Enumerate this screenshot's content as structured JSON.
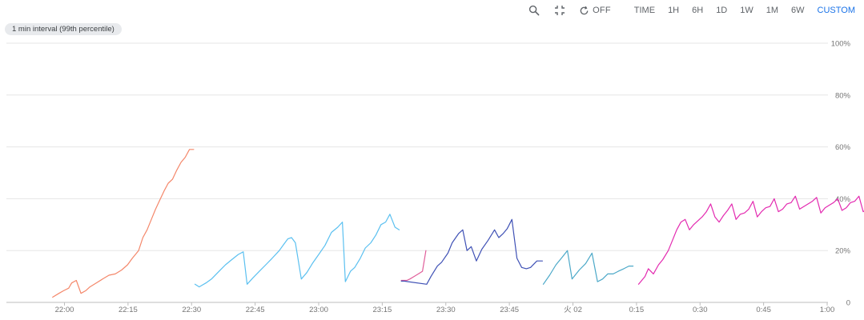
{
  "toolbar": {
    "zoom_icon": "search-icon",
    "collapse_icon": "collapse-icon",
    "refresh_icon": "refresh-icon",
    "refresh_label": "OFF",
    "ranges": [
      {
        "label": "TIME",
        "active": false
      },
      {
        "label": "1H",
        "active": false
      },
      {
        "label": "6H",
        "active": false
      },
      {
        "label": "1D",
        "active": false
      },
      {
        "label": "1W",
        "active": false
      },
      {
        "label": "1M",
        "active": false
      },
      {
        "label": "6W",
        "active": false
      },
      {
        "label": "CUSTOM",
        "active": true
      }
    ]
  },
  "interval_label": "1 min interval (99th percentile)",
  "chart_data": {
    "type": "line",
    "title": "",
    "xlabel": "",
    "ylabel": "",
    "x_range_minutes_after_2200": [
      -10.5,
      180
    ],
    "ylim": [
      0,
      100
    ],
    "grid": true,
    "y_axis_side": "right",
    "y_ticks": [
      {
        "value": 100,
        "label": "100%"
      },
      {
        "value": 80,
        "label": "80%"
      },
      {
        "value": 60,
        "label": "60%"
      },
      {
        "value": 40,
        "label": "40%"
      },
      {
        "value": 20,
        "label": "20%"
      },
      {
        "value": 0,
        "label": "0"
      }
    ],
    "x_ticks": [
      {
        "value": 0,
        "label": "22:00"
      },
      {
        "value": 15,
        "label": "22:15"
      },
      {
        "value": 30,
        "label": "22:30"
      },
      {
        "value": 45,
        "label": "22:45"
      },
      {
        "value": 60,
        "label": "23:00"
      },
      {
        "value": 75,
        "label": "23:15"
      },
      {
        "value": 90,
        "label": "23:30"
      },
      {
        "value": 105,
        "label": "23:45"
      },
      {
        "value": 120,
        "label": "火 02"
      },
      {
        "value": 135,
        "label": "0:15"
      },
      {
        "value": 150,
        "label": "0:30"
      },
      {
        "value": 165,
        "label": "0:45"
      },
      {
        "value": 180,
        "label": "1:00"
      }
    ],
    "series": [
      {
        "color": "#f4876a",
        "points": [
          [
            -2.8,
            2
          ],
          [
            -1.3,
            3.5
          ],
          [
            -0.2,
            4.5
          ],
          [
            1,
            5.5
          ],
          [
            1.7,
            7.5
          ],
          [
            2.8,
            8.5
          ],
          [
            3.9,
            3.5
          ],
          [
            5,
            4.5
          ],
          [
            6,
            6
          ],
          [
            7.5,
            7.5
          ],
          [
            9,
            9
          ],
          [
            10.5,
            10.5
          ],
          [
            12,
            11
          ],
          [
            13.5,
            12.5
          ],
          [
            14.9,
            14.5
          ],
          [
            16,
            17
          ],
          [
            17.5,
            20
          ],
          [
            18.5,
            25
          ],
          [
            19.5,
            28
          ],
          [
            20.5,
            32
          ],
          [
            21.5,
            36
          ],
          [
            22.5,
            39.5
          ],
          [
            23.5,
            43
          ],
          [
            24.5,
            46
          ],
          [
            25.5,
            47.5
          ],
          [
            26.5,
            51
          ],
          [
            27.5,
            54
          ],
          [
            28.5,
            56
          ],
          [
            29.5,
            59
          ],
          [
            30.5,
            59
          ]
        ]
      },
      {
        "color": "#5bc0f0",
        "points": [
          [
            30.8,
            7
          ],
          [
            31.8,
            6
          ],
          [
            33.4,
            7.5
          ],
          [
            34.7,
            9
          ],
          [
            36.5,
            12
          ],
          [
            38,
            14.5
          ],
          [
            39.5,
            16.5
          ],
          [
            41,
            18.5
          ],
          [
            42.2,
            19.5
          ],
          [
            43.1,
            7
          ],
          [
            44.5,
            9.5
          ],
          [
            46,
            12
          ],
          [
            47.5,
            14.5
          ],
          [
            49,
            17
          ],
          [
            50.7,
            20
          ],
          [
            51.8,
            22.5
          ],
          [
            52.7,
            24.5
          ],
          [
            53.6,
            25
          ],
          [
            54.5,
            23
          ],
          [
            55.9,
            9
          ],
          [
            57.2,
            11.5
          ],
          [
            58.5,
            15
          ],
          [
            60,
            18.5
          ],
          [
            61.5,
            22
          ],
          [
            63,
            27
          ],
          [
            64.5,
            29
          ],
          [
            65.6,
            31
          ],
          [
            66.3,
            8
          ],
          [
            67.5,
            12
          ],
          [
            68.5,
            13.5
          ],
          [
            69.8,
            17
          ],
          [
            71,
            21
          ],
          [
            72.3,
            23
          ],
          [
            73.5,
            26
          ],
          [
            74.7,
            30
          ],
          [
            75.8,
            31
          ],
          [
            76.8,
            34
          ],
          [
            78,
            29
          ],
          [
            79,
            28
          ]
        ]
      },
      {
        "color": "#e05e9a",
        "points": [
          [
            79.5,
            8.5
          ],
          [
            80.8,
            8.5
          ],
          [
            81.5,
            9
          ],
          [
            82.5,
            10
          ],
          [
            83.5,
            11
          ],
          [
            84.5,
            12
          ],
          [
            85.3,
            20
          ]
        ]
      },
      {
        "color": "#3f51b5",
        "points": [
          [
            79.5,
            8.2
          ],
          [
            80.2,
            8.2
          ],
          [
            85.5,
            7
          ],
          [
            86.5,
            10
          ],
          [
            88,
            14
          ],
          [
            89,
            15.5
          ],
          [
            90.5,
            19
          ],
          [
            91.5,
            23
          ],
          [
            93,
            26.5
          ],
          [
            94,
            28
          ],
          [
            95,
            20
          ],
          [
            96,
            21.5
          ],
          [
            97.2,
            16
          ],
          [
            98.5,
            20.5
          ],
          [
            100,
            24
          ],
          [
            101.5,
            28
          ],
          [
            102.5,
            25
          ],
          [
            103.5,
            26.5
          ],
          [
            104.5,
            28.5
          ],
          [
            105.6,
            32
          ],
          [
            106.8,
            17
          ],
          [
            107.9,
            13.5
          ],
          [
            109,
            13
          ],
          [
            110,
            13.5
          ],
          [
            111.5,
            16
          ],
          [
            112.8,
            16
          ]
        ]
      },
      {
        "color": "#4ba8c8",
        "points": [
          [
            113,
            7
          ],
          [
            114.5,
            10.5
          ],
          [
            116,
            14.5
          ],
          [
            117.5,
            17.5
          ],
          [
            118.7,
            20
          ],
          [
            119.8,
            9
          ],
          [
            121.5,
            12.5
          ],
          [
            123,
            15
          ],
          [
            124.5,
            19
          ],
          [
            125.8,
            8
          ],
          [
            127,
            9
          ],
          [
            128.2,
            11
          ],
          [
            129.5,
            11
          ],
          [
            130.7,
            12
          ],
          [
            132,
            13
          ],
          [
            133.2,
            14
          ],
          [
            134.2,
            14
          ]
        ]
      },
      {
        "color": "#e32ab0",
        "points": [
          [
            135.5,
            7
          ],
          [
            137,
            10
          ],
          [
            137.8,
            13
          ],
          [
            139,
            11
          ],
          [
            140.2,
            14.5
          ],
          [
            141.2,
            16.5
          ],
          [
            142.5,
            20
          ],
          [
            143.5,
            24
          ],
          [
            144.5,
            28
          ],
          [
            145.5,
            31
          ],
          [
            146.5,
            32
          ],
          [
            147.5,
            28
          ],
          [
            148.5,
            30
          ],
          [
            149.5,
            31.5
          ],
          [
            150.5,
            33
          ],
          [
            151.5,
            35
          ],
          [
            152.5,
            38
          ],
          [
            153.5,
            33
          ],
          [
            154.5,
            31
          ],
          [
            155.5,
            33.5
          ],
          [
            156.5,
            35.5
          ],
          [
            157.5,
            38
          ],
          [
            158.5,
            32
          ],
          [
            159.5,
            34
          ],
          [
            160.5,
            34.5
          ],
          [
            161.5,
            36
          ],
          [
            162.5,
            39
          ],
          [
            163.5,
            33
          ],
          [
            164.5,
            35
          ],
          [
            165.5,
            36.5
          ],
          [
            166.5,
            37
          ],
          [
            167.5,
            40
          ],
          [
            168.5,
            35
          ],
          [
            169.5,
            36
          ],
          [
            170.5,
            38
          ],
          [
            171.5,
            38.5
          ],
          [
            172.5,
            41
          ],
          [
            173.5,
            36
          ],
          [
            174.5,
            37
          ],
          [
            175.5,
            38
          ],
          [
            176.5,
            39
          ],
          [
            177.5,
            40.5
          ],
          [
            178.5,
            34.5
          ],
          [
            179.5,
            36.5
          ],
          [
            180.5,
            37.5
          ],
          [
            181.5,
            38.5
          ],
          [
            182.5,
            40
          ],
          [
            183.5,
            35.5
          ],
          [
            184.5,
            36.5
          ],
          [
            185.5,
            38.5
          ],
          [
            186.5,
            39
          ],
          [
            187.5,
            41
          ],
          [
            188.5,
            35
          ],
          [
            189.5,
            36
          ],
          [
            190.5,
            38
          ],
          [
            191.5,
            38.5
          ],
          [
            192.5,
            41
          ],
          [
            193.5,
            33
          ],
          [
            194.5,
            35
          ],
          [
            195.5,
            36
          ],
          [
            196.5,
            37
          ],
          [
            197.5,
            38
          ]
        ]
      }
    ]
  }
}
